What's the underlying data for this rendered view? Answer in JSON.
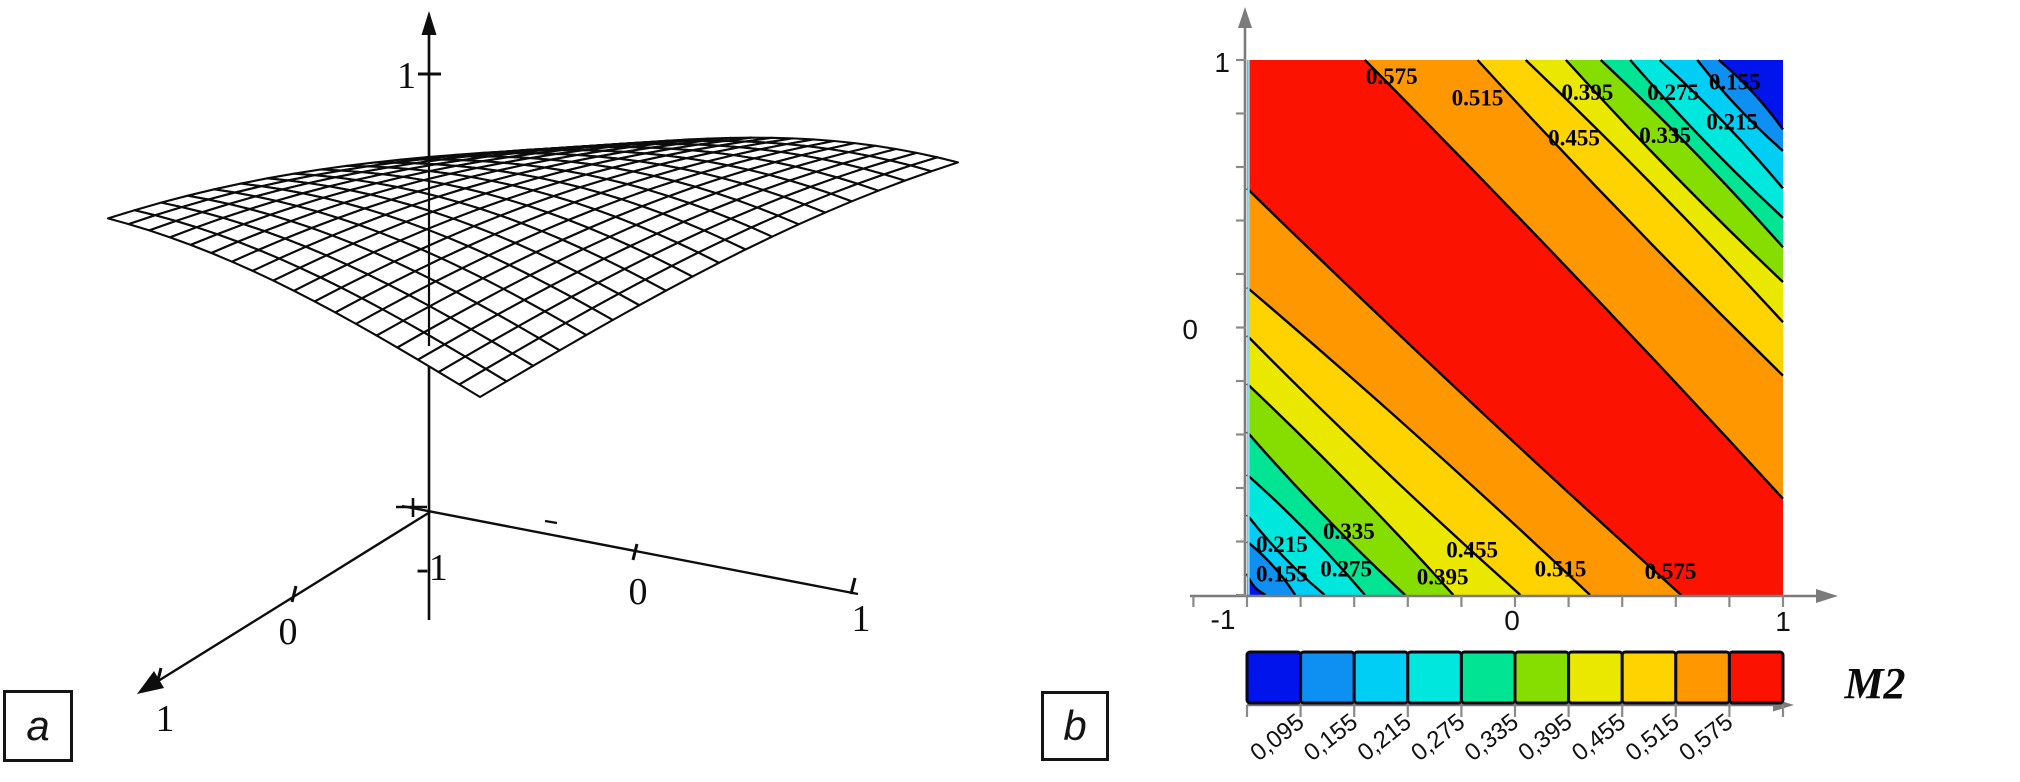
{
  "figure": {
    "panel_a_tag": "a",
    "panel_b_tag": "b"
  },
  "panel_a": {
    "z_axis": {
      "top_label": "1",
      "origin_label": "-1"
    },
    "right_axis": {
      "mid_label": "0",
      "end_label": "1"
    },
    "left_axis": {
      "mid_label": "0",
      "end_label": "1"
    }
  },
  "panel_b": {
    "y_axis_labels": [
      "1",
      "0"
    ],
    "x_axis_labels": [
      "-1",
      "0",
      "1"
    ],
    "colorbar_title": "M2"
  },
  "chart_data": [
    {
      "type": "surface3d-wireframe",
      "panel": "a",
      "x_range": [
        -1,
        1
      ],
      "y_range": [
        -1,
        1
      ],
      "z_tick_labels": [
        "1",
        "-1"
      ],
      "axis_tick_labels": {
        "right_axis": [
          "0",
          "1"
        ],
        "left_axis": [
          "0",
          "1"
        ]
      },
      "grid_cells": 18,
      "surface": "ridge peaked along x+y=0, falling to ~0 at |x+y|=2",
      "z_peak": 0.62
    },
    {
      "type": "contour-filled",
      "panel": "b",
      "x_range": [
        -1,
        1
      ],
      "y_range": [
        -1,
        1
      ],
      "levels": [
        0.095,
        0.155,
        0.215,
        0.275,
        0.335,
        0.395,
        0.455,
        0.515,
        0.575
      ],
      "base_color_high": "#fb1200",
      "band_colors_outward_from_red": [
        "#ff9800",
        "#ffd300",
        "#ebe800",
        "#86dd00",
        "#00e494",
        "#00e7de",
        "#00cef5",
        "#0e8ff2",
        "#0014eb"
      ],
      "colorbar_colors_low_to_high": [
        "#0014eb",
        "#0e8ff2",
        "#00cef5",
        "#00e7de",
        "#00e494",
        "#86dd00",
        "#ebe800",
        "#ffd300",
        "#ff9800",
        "#fb1200"
      ],
      "colorbar_tick_labels": [
        "0,095",
        "0,155",
        "0,215",
        "0,275",
        "0,335",
        "0,395",
        "0,455",
        "0,515",
        "0,575"
      ],
      "colorbar_title": "M2",
      "boundaries_ne": [
        {
          "level": 0.575,
          "top_x": -0.56,
          "right_y": -0.64
        },
        {
          "level": 0.515,
          "top_x": -0.14,
          "right_y": -0.18
        },
        {
          "level": 0.455,
          "top_x": 0.04,
          "right_y": 0.02
        },
        {
          "level": 0.395,
          "top_x": 0.19,
          "right_y": 0.17
        },
        {
          "level": 0.335,
          "top_x": 0.32,
          "right_y": 0.3
        },
        {
          "level": 0.275,
          "top_x": 0.43,
          "right_y": 0.41
        },
        {
          "level": 0.215,
          "top_x": 0.54,
          "right_y": 0.52
        },
        {
          "level": 0.155,
          "top_x": 0.68,
          "right_y": 0.66
        },
        {
          "level": 0.095,
          "top_x": 0.76,
          "right_y": 0.74
        }
      ],
      "boundaries_sw": [
        {
          "level": 0.575,
          "left_y": 0.52,
          "bottom_x": 0.62
        },
        {
          "level": 0.515,
          "left_y": 0.15,
          "bottom_x": 0.28
        },
        {
          "level": 0.455,
          "left_y": -0.03,
          "bottom_x": 0.02
        },
        {
          "level": 0.395,
          "left_y": -0.21,
          "bottom_x": -0.23
        },
        {
          "level": 0.335,
          "left_y": -0.39,
          "bottom_x": -0.41
        },
        {
          "level": 0.275,
          "left_y": -0.55,
          "bottom_x": -0.56
        },
        {
          "level": 0.215,
          "left_y": -0.7,
          "bottom_x": -0.71
        },
        {
          "level": 0.155,
          "left_y": -0.8,
          "bottom_x": -0.82
        },
        {
          "level": 0.095,
          "left_y": -0.92,
          "bottom_x": -0.93
        }
      ],
      "annotations": [
        {
          "text": "0.575",
          "x": -0.46,
          "y": 0.91
        },
        {
          "text": "0.515",
          "x": -0.14,
          "y": 0.83
        },
        {
          "text": "0.395",
          "x": 0.27,
          "y": 0.85
        },
        {
          "text": "0.275",
          "x": 0.59,
          "y": 0.85
        },
        {
          "text": "0.155",
          "x": 0.82,
          "y": 0.89
        },
        {
          "text": "0.455",
          "x": 0.22,
          "y": 0.68
        },
        {
          "text": "0.335",
          "x": 0.56,
          "y": 0.69
        },
        {
          "text": "0.215",
          "x": 0.81,
          "y": 0.74
        },
        {
          "text": "0.215",
          "x": -0.87,
          "y": -0.84
        },
        {
          "text": "0.335",
          "x": -0.62,
          "y": -0.79
        },
        {
          "text": "0.155",
          "x": -0.87,
          "y": -0.95
        },
        {
          "text": "0.275",
          "x": -0.63,
          "y": -0.93
        },
        {
          "text": "0.395",
          "x": -0.27,
          "y": -0.96
        },
        {
          "text": "0.455",
          "x": -0.16,
          "y": -0.86
        },
        {
          "text": "0.515",
          "x": 0.17,
          "y": -0.93
        },
        {
          "text": "0.575",
          "x": 0.58,
          "y": -0.94
        }
      ]
    }
  ]
}
